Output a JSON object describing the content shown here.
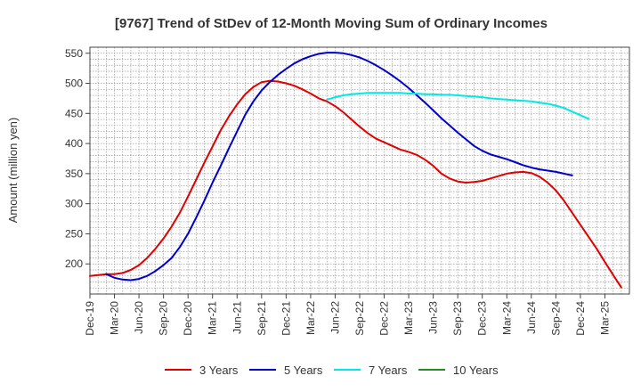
{
  "chart_data": {
    "type": "line",
    "title": "[9767]  Trend of StDev of 12-Month Moving Sum of Ordinary Incomes",
    "ylabel": "Amount (million yen)",
    "xlabel": "",
    "ylim": [
      150,
      560
    ],
    "yticks": [
      200,
      250,
      300,
      350,
      400,
      450,
      500,
      550
    ],
    "xlim": [
      0,
      66
    ],
    "xtick_labels": [
      "Dec-19",
      "Mar-20",
      "Jun-20",
      "Sep-20",
      "Dec-20",
      "Mar-21",
      "Jun-21",
      "Sep-21",
      "Dec-21",
      "Mar-22",
      "Jun-22",
      "Sep-22",
      "Dec-22",
      "Mar-23",
      "Jun-23",
      "Sep-23",
      "Dec-23",
      "Mar-24",
      "Jun-24",
      "Sep-24",
      "Dec-24",
      "Mar-25"
    ],
    "grid": true,
    "legend_position": "bottom",
    "series": [
      {
        "name": "3 Years",
        "color": "#e00000",
        "points": [
          [
            0,
            180
          ],
          [
            2,
            183
          ],
          [
            3,
            183
          ],
          [
            4,
            185
          ],
          [
            5,
            190
          ],
          [
            6,
            198
          ],
          [
            7,
            210
          ],
          [
            8,
            225
          ],
          [
            9,
            242
          ],
          [
            10,
            262
          ],
          [
            11,
            285
          ],
          [
            12,
            312
          ],
          [
            13,
            340
          ],
          [
            14,
            368
          ],
          [
            15,
            395
          ],
          [
            16,
            422
          ],
          [
            17,
            445
          ],
          [
            18,
            465
          ],
          [
            19,
            482
          ],
          [
            20,
            494
          ],
          [
            21,
            502
          ],
          [
            22,
            504
          ],
          [
            23,
            503
          ],
          [
            24,
            500
          ],
          [
            25,
            496
          ],
          [
            26,
            490
          ],
          [
            27,
            483
          ],
          [
            28,
            475
          ],
          [
            29,
            470
          ],
          [
            30,
            462
          ],
          [
            31,
            452
          ],
          [
            32,
            440
          ],
          [
            33,
            428
          ],
          [
            34,
            417
          ],
          [
            35,
            408
          ],
          [
            36,
            402
          ],
          [
            37,
            396
          ],
          [
            38,
            390
          ],
          [
            39,
            386
          ],
          [
            40,
            381
          ],
          [
            41,
            373
          ],
          [
            42,
            363
          ],
          [
            43,
            350
          ],
          [
            44,
            342
          ],
          [
            45,
            337
          ],
          [
            46,
            335
          ],
          [
            47,
            336
          ],
          [
            48,
            338
          ],
          [
            49,
            342
          ],
          [
            50,
            346
          ],
          [
            51,
            350
          ],
          [
            52,
            352
          ],
          [
            53,
            353
          ],
          [
            54,
            351
          ],
          [
            55,
            345
          ],
          [
            56,
            335
          ],
          [
            57,
            322
          ],
          [
            58,
            305
          ],
          [
            59,
            285
          ],
          [
            60,
            265
          ],
          [
            61,
            245
          ],
          [
            62,
            225
          ],
          [
            63,
            203
          ],
          [
            64,
            182
          ],
          [
            65,
            161
          ]
        ]
      },
      {
        "name": "5 Years",
        "color": "#0000cc",
        "points": [
          [
            2,
            183
          ],
          [
            3,
            177
          ],
          [
            4,
            174
          ],
          [
            5,
            173
          ],
          [
            6,
            175
          ],
          [
            7,
            180
          ],
          [
            8,
            188
          ],
          [
            9,
            198
          ],
          [
            10,
            210
          ],
          [
            11,
            228
          ],
          [
            12,
            250
          ],
          [
            13,
            277
          ],
          [
            14,
            305
          ],
          [
            15,
            335
          ],
          [
            16,
            363
          ],
          [
            17,
            392
          ],
          [
            18,
            420
          ],
          [
            19,
            448
          ],
          [
            20,
            470
          ],
          [
            21,
            488
          ],
          [
            22,
            502
          ],
          [
            23,
            514
          ],
          [
            24,
            524
          ],
          [
            25,
            533
          ],
          [
            26,
            540
          ],
          [
            27,
            545
          ],
          [
            28,
            549
          ],
          [
            29,
            551
          ],
          [
            30,
            551
          ],
          [
            31,
            550
          ],
          [
            32,
            547
          ],
          [
            33,
            543
          ],
          [
            34,
            537
          ],
          [
            35,
            530
          ],
          [
            36,
            522
          ],
          [
            37,
            513
          ],
          [
            38,
            503
          ],
          [
            39,
            492
          ],
          [
            40,
            480
          ],
          [
            41,
            468
          ],
          [
            42,
            455
          ],
          [
            43,
            442
          ],
          [
            44,
            430
          ],
          [
            45,
            418
          ],
          [
            46,
            407
          ],
          [
            47,
            396
          ],
          [
            48,
            388
          ],
          [
            49,
            382
          ],
          [
            50,
            378
          ],
          [
            51,
            374
          ],
          [
            52,
            369
          ],
          [
            53,
            364
          ],
          [
            54,
            360
          ],
          [
            55,
            357
          ],
          [
            56,
            355
          ],
          [
            57,
            353
          ],
          [
            58,
            350
          ],
          [
            59,
            347
          ]
        ]
      },
      {
        "name": "7 Years",
        "color": "#00e8e8",
        "points": [
          [
            29,
            473
          ],
          [
            30,
            477
          ],
          [
            31,
            480
          ],
          [
            32,
            482
          ],
          [
            33,
            483
          ],
          [
            34,
            484
          ],
          [
            35,
            484
          ],
          [
            36,
            484
          ],
          [
            37,
            484
          ],
          [
            38,
            484
          ],
          [
            39,
            483
          ],
          [
            40,
            483
          ],
          [
            41,
            482
          ],
          [
            42,
            482
          ],
          [
            43,
            481
          ],
          [
            44,
            481
          ],
          [
            45,
            480
          ],
          [
            46,
            479
          ],
          [
            47,
            478
          ],
          [
            48,
            477
          ],
          [
            49,
            475
          ],
          [
            50,
            474
          ],
          [
            51,
            473
          ],
          [
            52,
            472
          ],
          [
            53,
            471
          ],
          [
            54,
            470
          ],
          [
            55,
            468
          ],
          [
            56,
            466
          ],
          [
            57,
            463
          ],
          [
            58,
            459
          ],
          [
            59,
            453
          ],
          [
            60,
            447
          ],
          [
            61,
            441
          ]
        ]
      },
      {
        "name": "10 Years",
        "color": "#228b22",
        "points": []
      }
    ]
  }
}
